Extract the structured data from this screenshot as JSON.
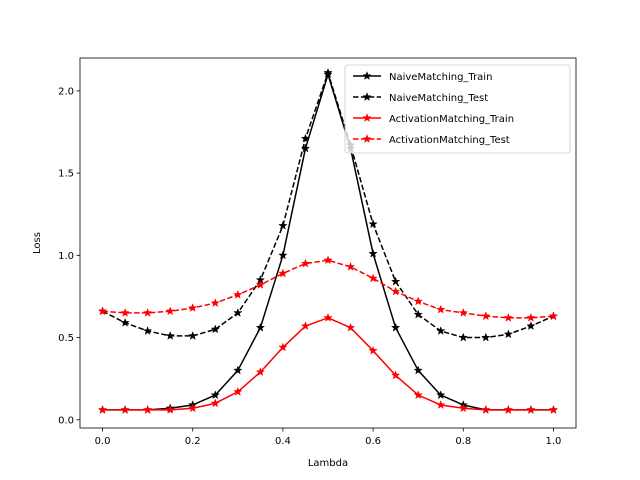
{
  "chart_data": {
    "type": "line",
    "xlabel": "Lambda",
    "ylabel": "Loss",
    "xlim": [
      -0.05,
      1.05
    ],
    "ylim": [
      -0.05,
      2.2
    ],
    "xticks": [
      0.0,
      0.2,
      0.4,
      0.6,
      0.8,
      1.0
    ],
    "xtick_labels": [
      "0.0",
      "0.2",
      "0.4",
      "0.6",
      "0.8",
      "1.0"
    ],
    "yticks": [
      0.0,
      0.5,
      1.0,
      1.5,
      2.0
    ],
    "ytick_labels": [
      "0.0",
      "0.5",
      "1.0",
      "1.5",
      "2.0"
    ],
    "grid": false,
    "legend_position": "top-right",
    "x": [
      0.0,
      0.05,
      0.1,
      0.15,
      0.2,
      0.25,
      0.3,
      0.35,
      0.4,
      0.45,
      0.5,
      0.55,
      0.6,
      0.65,
      0.7,
      0.75,
      0.8,
      0.85,
      0.9,
      0.95,
      1.0
    ],
    "series": [
      {
        "name": "NaiveMatching_Train",
        "color": "#000000",
        "dashed": false,
        "marker": "star",
        "values": [
          0.06,
          0.06,
          0.06,
          0.07,
          0.09,
          0.15,
          0.3,
          0.56,
          1.0,
          1.65,
          2.1,
          1.65,
          1.01,
          0.56,
          0.3,
          0.15,
          0.09,
          0.06,
          0.06,
          0.06,
          0.06
        ]
      },
      {
        "name": "NaiveMatching_Test",
        "color": "#000000",
        "dashed": true,
        "marker": "star",
        "values": [
          0.66,
          0.59,
          0.54,
          0.51,
          0.51,
          0.55,
          0.65,
          0.85,
          1.18,
          1.71,
          2.11,
          1.67,
          1.19,
          0.84,
          0.64,
          0.54,
          0.5,
          0.5,
          0.52,
          0.57,
          0.63
        ]
      },
      {
        "name": "ActivationMatching_Train",
        "color": "#ff0000",
        "dashed": false,
        "marker": "star",
        "values": [
          0.06,
          0.06,
          0.06,
          0.06,
          0.07,
          0.1,
          0.17,
          0.29,
          0.44,
          0.57,
          0.62,
          0.56,
          0.42,
          0.27,
          0.15,
          0.09,
          0.07,
          0.06,
          0.06,
          0.06,
          0.06
        ]
      },
      {
        "name": "ActivationMatching_Test",
        "color": "#ff0000",
        "dashed": true,
        "marker": "star",
        "values": [
          0.66,
          0.65,
          0.65,
          0.66,
          0.68,
          0.71,
          0.76,
          0.82,
          0.89,
          0.95,
          0.97,
          0.93,
          0.86,
          0.78,
          0.72,
          0.67,
          0.65,
          0.63,
          0.62,
          0.62,
          0.63
        ]
      }
    ]
  }
}
